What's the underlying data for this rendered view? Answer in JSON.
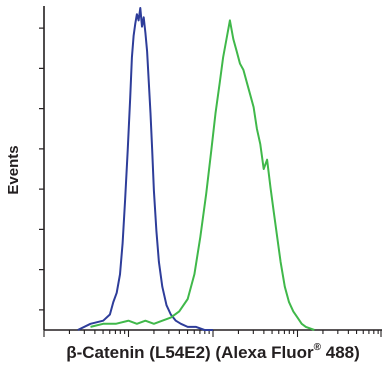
{
  "chart_data": {
    "type": "line",
    "ylabel": "Events",
    "xlabel_prefix": "β-Catenin (L54E2) (Alexa Fluor",
    "xlabel_superscript": "®",
    "xlabel_suffix": " 488)",
    "x_scale": "log",
    "xlim_decades": [
      0,
      4
    ],
    "grid": false,
    "legend": "none",
    "series": [
      {
        "color": "#2e3d9a",
        "x": [
          0.4,
          0.55,
          0.7,
          0.78,
          0.82,
          0.86,
          0.9,
          0.93,
          0.96,
          0.99,
          1.02,
          1.04,
          1.06,
          1.08,
          1.1,
          1.12,
          1.14,
          1.16,
          1.18,
          1.2,
          1.22,
          1.24,
          1.26,
          1.28,
          1.3,
          1.33,
          1.36,
          1.4,
          1.45,
          1.5,
          1.56,
          1.62,
          1.7,
          1.8,
          1.9,
          2.0
        ],
        "y": [
          0,
          2,
          3,
          5,
          9,
          12,
          18,
          28,
          42,
          58,
          75,
          88,
          95,
          99,
          102,
          100,
          104,
          98,
          101,
          96,
          90,
          80,
          70,
          58,
          45,
          32,
          22,
          14,
          8,
          5,
          3,
          2,
          1,
          1,
          0,
          0
        ]
      },
      {
        "color": "#40b84a",
        "x": [
          0.55,
          0.7,
          0.85,
          1.0,
          1.1,
          1.2,
          1.3,
          1.4,
          1.5,
          1.6,
          1.7,
          1.78,
          1.85,
          1.92,
          1.98,
          2.03,
          2.08,
          2.12,
          2.16,
          2.2,
          2.24,
          2.28,
          2.32,
          2.36,
          2.4,
          2.44,
          2.48,
          2.52,
          2.56,
          2.6,
          2.64,
          2.68,
          2.72,
          2.76,
          2.8,
          2.85,
          2.9,
          2.95,
          3.0,
          3.05,
          3.1,
          3.2
        ],
        "y": [
          1,
          2,
          2,
          3,
          2,
          3,
          2,
          3,
          4,
          6,
          10,
          18,
          30,
          44,
          58,
          70,
          80,
          88,
          94,
          100,
          94,
          90,
          86,
          84,
          80,
          76,
          72,
          65,
          60,
          52,
          55,
          46,
          38,
          30,
          22,
          14,
          9,
          6,
          4,
          2,
          1,
          0
        ]
      }
    ]
  }
}
